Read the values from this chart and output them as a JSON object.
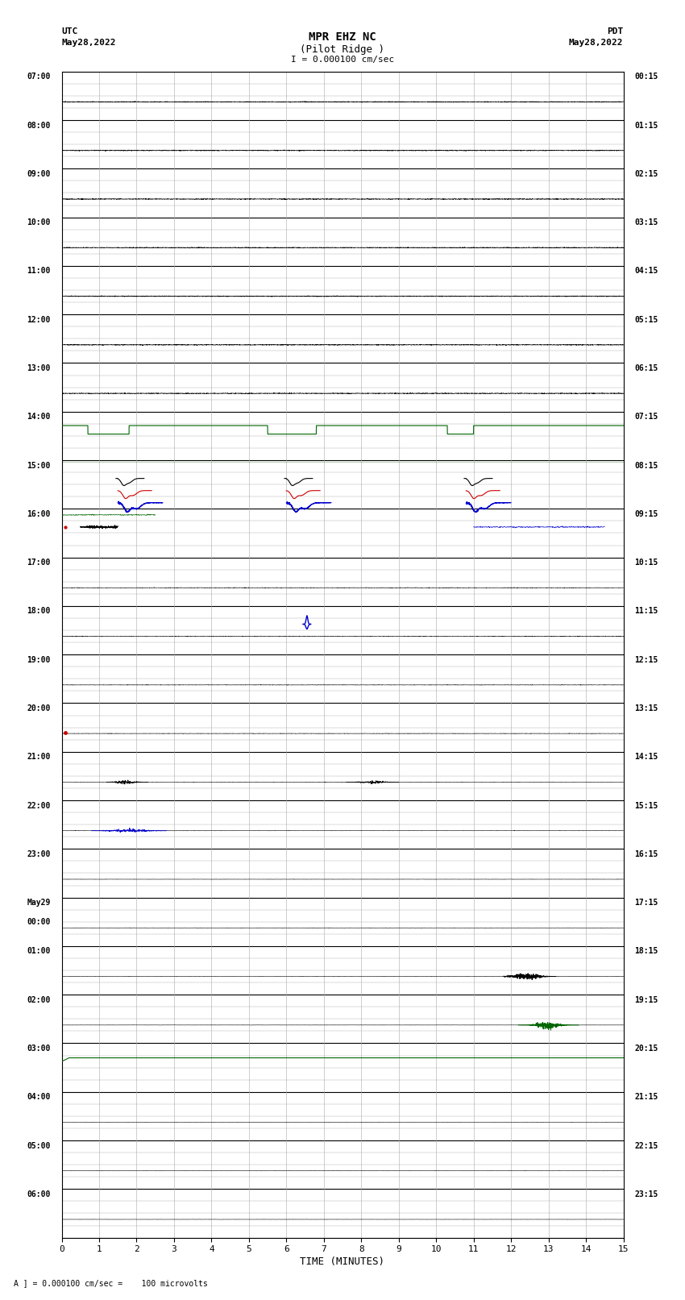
{
  "title_line1": "MPR EHZ NC",
  "title_line2": "(Pilot Ridge )",
  "title_scale": "I = 0.000100 cm/sec",
  "label_left_top": "UTC",
  "label_left_date": "May28,2022",
  "label_right_top": "PDT",
  "label_right_date": "May28,2022",
  "xlabel": "TIME (MINUTES)",
  "footer": "A ] = 0.000100 cm/sec =    100 microvolts",
  "utc_labels": [
    "07:00",
    "08:00",
    "09:00",
    "10:00",
    "11:00",
    "12:00",
    "13:00",
    "14:00",
    "15:00",
    "16:00",
    "17:00",
    "18:00",
    "19:00",
    "20:00",
    "21:00",
    "22:00",
    "23:00",
    "May29\n00:00",
    "01:00",
    "02:00",
    "03:00",
    "04:00",
    "05:00",
    "06:00"
  ],
  "pdt_labels": [
    "00:15",
    "01:15",
    "02:15",
    "03:15",
    "04:15",
    "05:15",
    "06:15",
    "07:15",
    "08:15",
    "09:15",
    "10:15",
    "11:15",
    "12:15",
    "13:15",
    "14:15",
    "15:15",
    "16:15",
    "17:15",
    "18:15",
    "19:15",
    "20:15",
    "21:15",
    "22:15",
    "23:15"
  ],
  "n_rows": 24,
  "subrows": 4,
  "x_min": 0,
  "x_max": 15,
  "bg_color": "#ffffff",
  "grid_major_color": "#000000",
  "grid_minor_color": "#aaaaaa",
  "trace_color_black": "#000000",
  "trace_color_red": "#cc0000",
  "trace_color_blue": "#0000cc",
  "trace_color_green": "#006600"
}
